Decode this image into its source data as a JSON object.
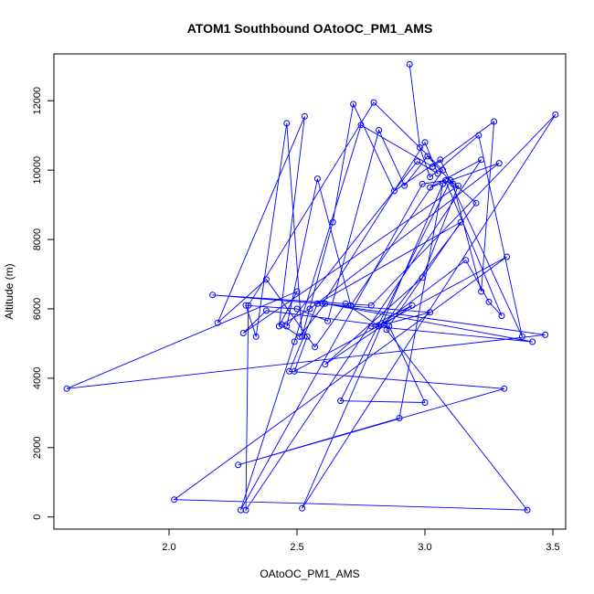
{
  "chart_data": {
    "type": "scatter",
    "title": "ATOM1 Southbound OAtoOC_PM1_AMS",
    "xlabel": "OAtoOC_PM1_AMS",
    "ylabel": "Altitude (m)",
    "xlim": [
      1.55,
      3.55
    ],
    "ylim": [
      -350,
      13350
    ],
    "xticks": [
      2.0,
      2.5,
      3.0,
      3.5
    ],
    "xtick_labels": [
      "2.0",
      "2.5",
      "3.0",
      "3.5"
    ],
    "yticks": [
      0,
      2000,
      4000,
      6000,
      8000,
      10000,
      12000
    ],
    "ytick_labels": [
      "0",
      "2000",
      "4000",
      "6000",
      "8000",
      "10000",
      "12000"
    ],
    "grid": false,
    "color": "#0000ff",
    "marker": "open-circle",
    "connect_points": true,
    "series": [
      {
        "x": [
          2.94,
          2.98,
          3.02,
          3.21,
          3.38,
          3.06,
          2.88,
          2.72,
          2.64,
          2.52,
          2.46,
          2.34,
          2.3,
          2.5,
          2.62,
          2.82,
          2.92,
          3.01,
          3.11,
          3.22,
          3.27,
          3.03,
          2.75,
          2.49,
          2.28,
          2.99,
          3.08,
          3.3,
          3.25,
          3.16,
          2.82,
          2.69,
          2.57,
          2.38,
          2.19,
          2.53,
          2.43,
          2.5,
          1.6,
          3.47,
          2.6,
          3.0,
          3.05,
          2.97,
          2.46,
          2.58,
          2.71,
          3.07,
          2.8,
          2.31,
          2.3,
          3.22,
          3.02,
          3.29,
          2.55,
          2.44,
          2.51,
          2.61,
          3.42,
          2.79,
          2.95,
          2.61,
          2.99,
          3.13,
          2.29,
          2.38,
          2.86,
          3.0,
          2.67,
          3.1,
          3.2,
          2.84,
          3.02,
          2.17,
          2.79,
          3.51,
          2.52,
          3.07,
          2.9,
          2.27,
          3.31,
          2.47,
          2.58,
          3.14,
          2.85,
          3.4,
          2.02,
          3.32,
          2.49,
          2.54
        ],
        "y": [
          13050,
          10650,
          9800,
          11000,
          5200,
          10300,
          9400,
          11900,
          8500,
          5200,
          11350,
          5200,
          6100,
          6000,
          5650,
          11150,
          9550,
          10400,
          9600,
          6500,
          11400,
          10100,
          11300,
          5050,
          200,
          9600,
          9700,
          5800,
          6200,
          7400,
          5500,
          6150,
          4900,
          6850,
          5600,
          11550,
          5500,
          6500,
          3700,
          5250,
          6150,
          10800,
          9900,
          10250,
          5500,
          9750,
          6100,
          10000,
          11950,
          6100,
          200,
          10300,
          9500,
          10200,
          6000,
          5550,
          5200,
          6150,
          5050,
          5500,
          6100,
          4400,
          6900,
          9550,
          5300,
          5950,
          5500,
          3300,
          3350,
          9700,
          9050,
          5550,
          5900,
          6400,
          6100,
          11600,
          250,
          9600,
          2850,
          1500,
          3700,
          4200,
          6150,
          8500,
          5400,
          200,
          500,
          7500,
          4200,
          5200
        ]
      }
    ]
  }
}
